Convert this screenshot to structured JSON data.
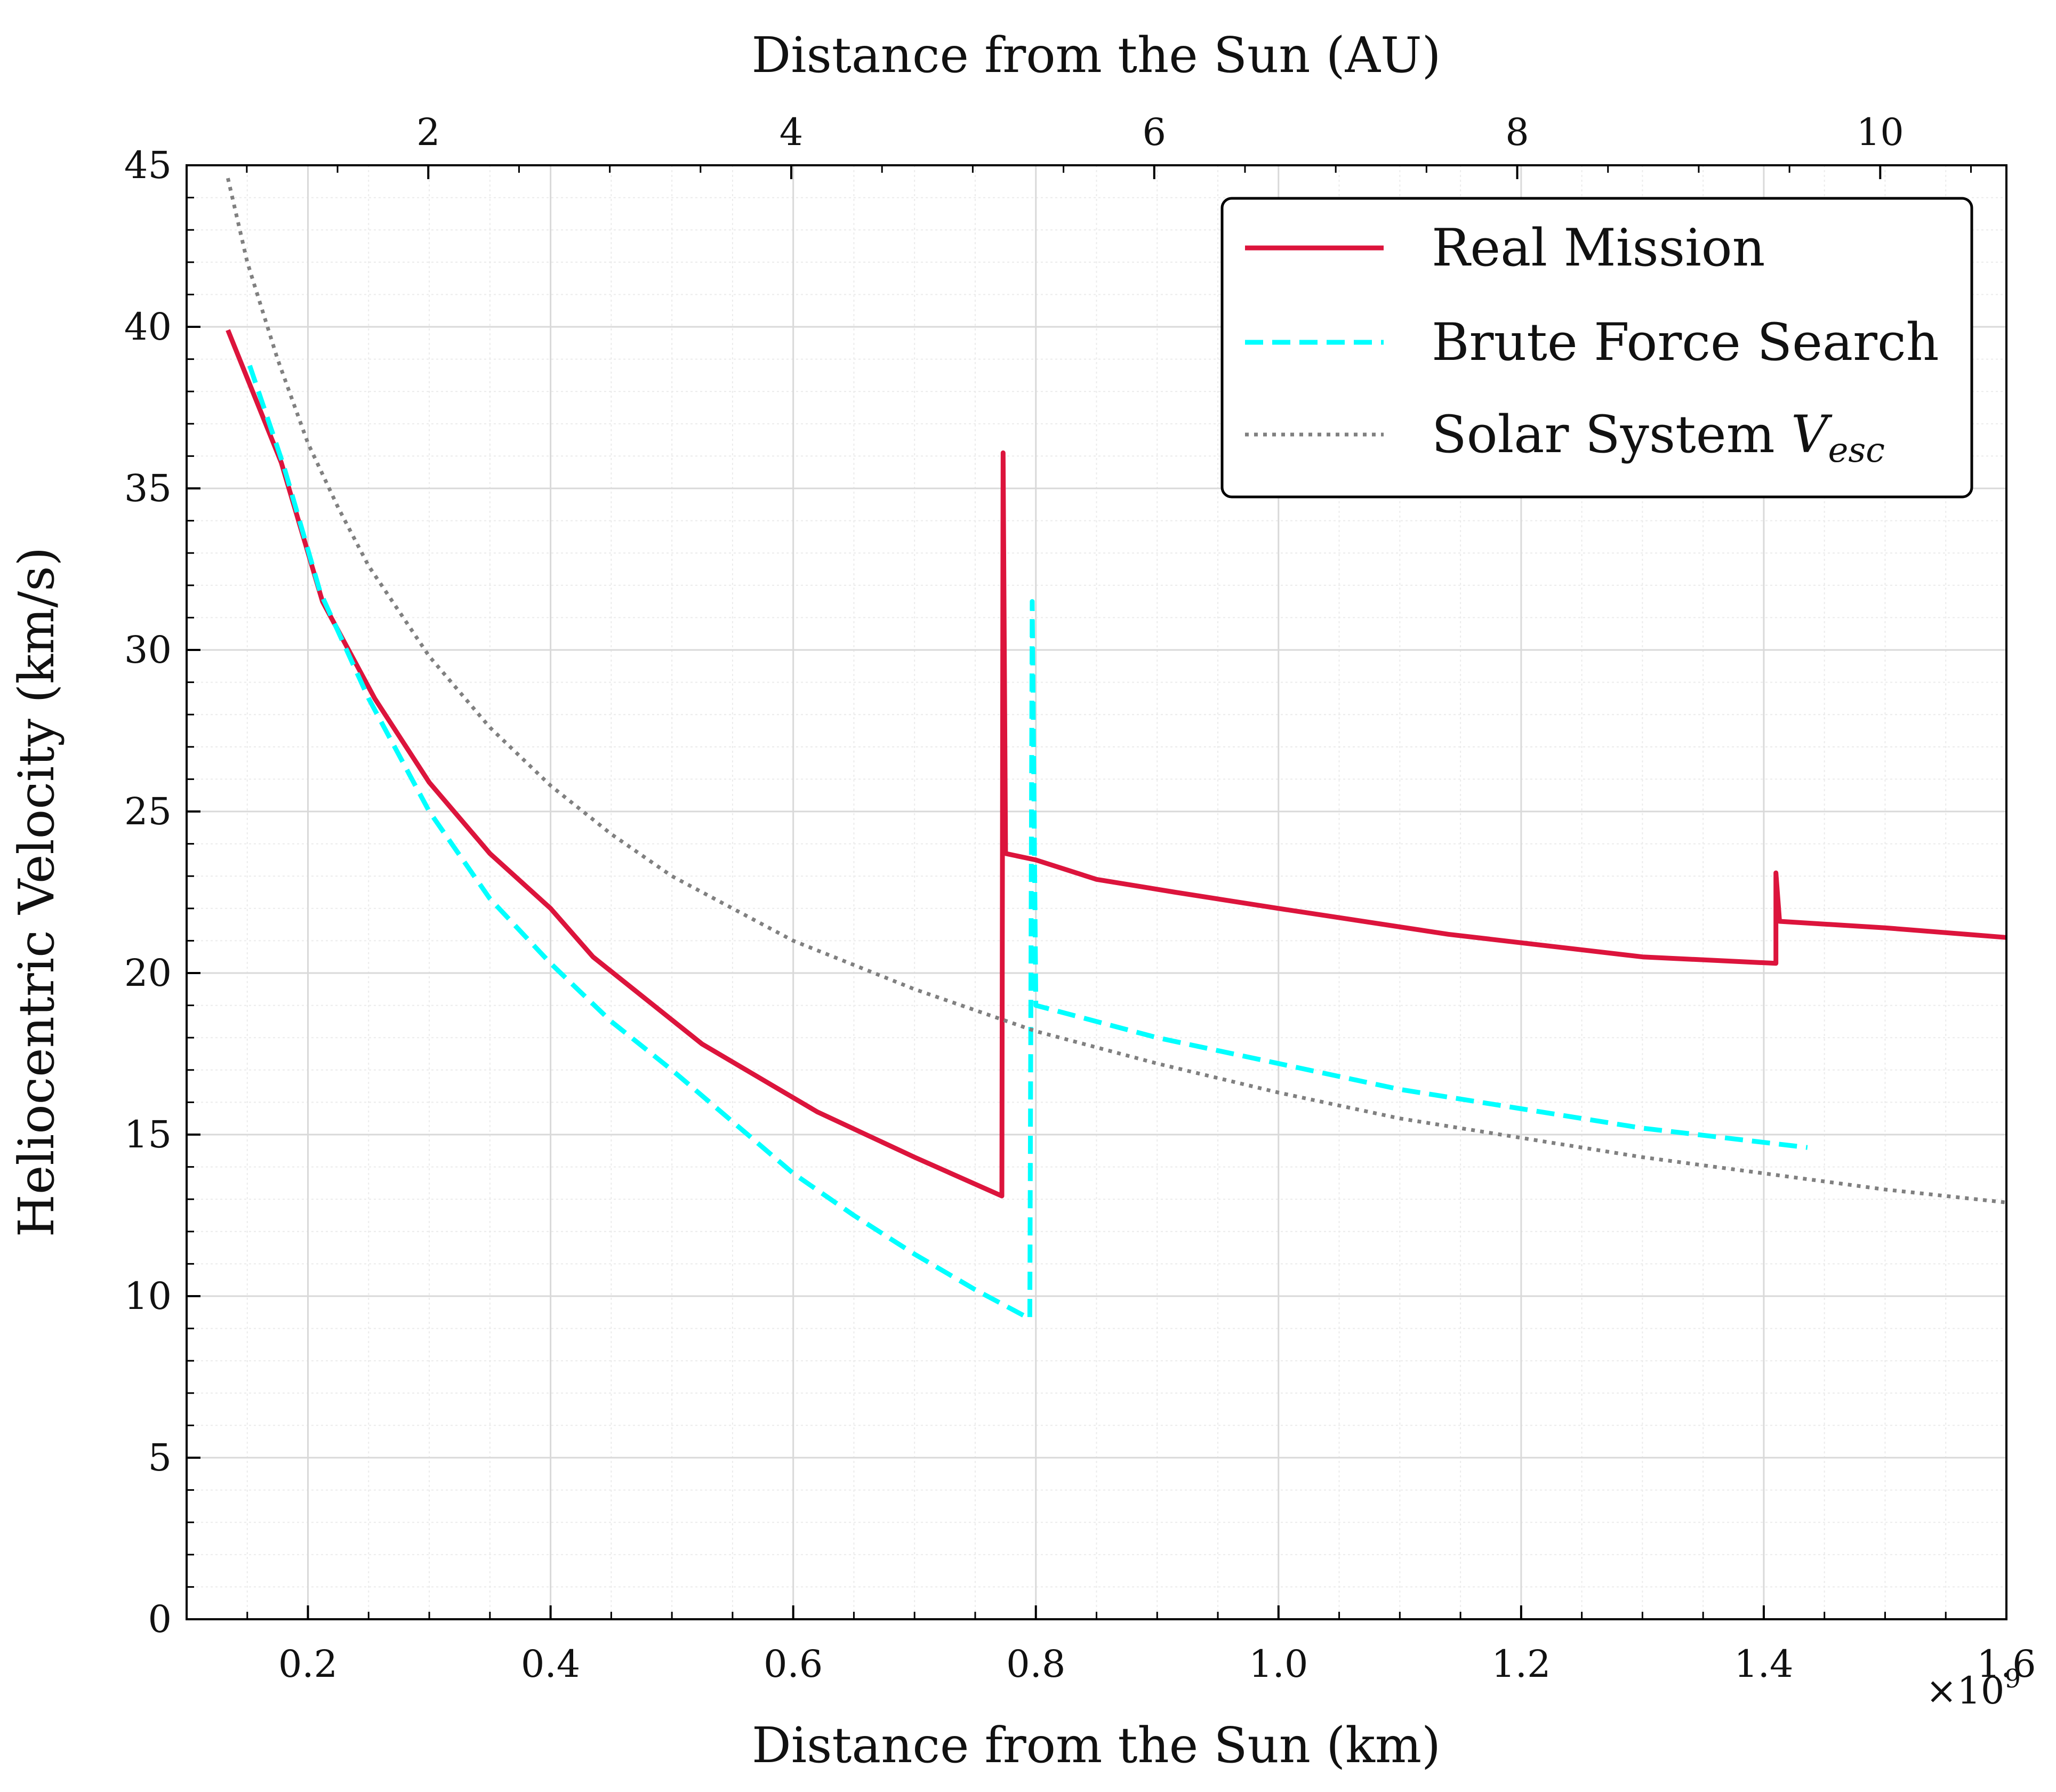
{
  "chart_data": {
    "type": "line",
    "xlabel": "Distance from the Sun (km)",
    "x_multiplier_label": "×10",
    "x_multiplier_exp": "9",
    "x_scale": 1000000000,
    "top_xlabel": "Distance from the Sun (AU)",
    "ylabel": "Heliocentric Velocity (km/s)",
    "xlim": [
      0.1,
      1.6
    ],
    "ylim": [
      0,
      45
    ],
    "x_ticks": [
      0.2,
      0.4,
      0.6,
      0.8,
      1.0,
      1.2,
      1.4,
      1.6
    ],
    "x_tick_labels": [
      "0.2",
      "0.4",
      "0.6",
      "0.8",
      "1.0",
      "1.2",
      "1.4",
      "1.6"
    ],
    "y_ticks": [
      0,
      5,
      10,
      15,
      20,
      25,
      30,
      35,
      40,
      45
    ],
    "y_tick_labels": [
      "0",
      "5",
      "10",
      "15",
      "20",
      "25",
      "30",
      "35",
      "40",
      "45"
    ],
    "top_x_ticks_au": [
      2,
      4,
      6,
      8,
      10
    ],
    "top_x_tick_labels": [
      "2",
      "4",
      "6",
      "8",
      "10"
    ],
    "au_km": 149597870.7,
    "grid": true,
    "legend_position": "top-right",
    "legend": {
      "real": "Real Mission",
      "brute": "Brute Force Search",
      "vesc_prefix": "Solar System ",
      "vesc_symbol": "V",
      "vesc_sub": "esc"
    },
    "series": [
      {
        "name": "Real Mission",
        "style": "solid",
        "color": "#dc143c",
        "points": [
          [
            0.134,
            39.9
          ],
          [
            0.178,
            35.8
          ],
          [
            0.212,
            31.5
          ],
          [
            0.255,
            28.5
          ],
          [
            0.3,
            25.9
          ],
          [
            0.35,
            23.7
          ],
          [
            0.4,
            22.0
          ],
          [
            0.435,
            20.5
          ],
          [
            0.525,
            17.8
          ],
          [
            0.62,
            15.7
          ],
          [
            0.7,
            14.3
          ],
          [
            0.772,
            13.1
          ],
          [
            0.773,
            36.1
          ],
          [
            0.775,
            23.7
          ],
          [
            0.8,
            23.5
          ],
          [
            0.85,
            22.9
          ],
          [
            0.915,
            22.5
          ],
          [
            1.0,
            22.0
          ],
          [
            1.14,
            21.2
          ],
          [
            1.3,
            20.5
          ],
          [
            1.41,
            20.3
          ],
          [
            1.41,
            23.1
          ],
          [
            1.413,
            21.6
          ],
          [
            1.5,
            21.4
          ],
          [
            1.6,
            21.1
          ]
        ]
      },
      {
        "name": "Brute Force Search",
        "style": "dashed",
        "color": "#00ffff",
        "points": [
          [
            0.152,
            38.8
          ],
          [
            0.18,
            35.7
          ],
          [
            0.21,
            31.8
          ],
          [
            0.25,
            28.5
          ],
          [
            0.3,
            25.0
          ],
          [
            0.35,
            22.3
          ],
          [
            0.4,
            20.3
          ],
          [
            0.45,
            18.5
          ],
          [
            0.5,
            17.0
          ],
          [
            0.55,
            15.4
          ],
          [
            0.6,
            13.8
          ],
          [
            0.65,
            12.5
          ],
          [
            0.7,
            11.3
          ],
          [
            0.75,
            10.2
          ],
          [
            0.795,
            9.3
          ],
          [
            0.797,
            31.5
          ],
          [
            0.8,
            19.0
          ],
          [
            0.9,
            18.0
          ],
          [
            1.0,
            17.2
          ],
          [
            1.1,
            16.4
          ],
          [
            1.2,
            15.8
          ],
          [
            1.3,
            15.2
          ],
          [
            1.436,
            14.6
          ]
        ]
      },
      {
        "name": "Solar System V_esc",
        "style": "dotted",
        "color": "#808080",
        "points": [
          [
            0.134,
            44.6
          ],
          [
            0.15,
            42.0
          ],
          [
            0.175,
            39.0
          ],
          [
            0.2,
            36.4
          ],
          [
            0.225,
            34.4
          ],
          [
            0.25,
            32.6
          ],
          [
            0.3,
            29.8
          ],
          [
            0.35,
            27.6
          ],
          [
            0.4,
            25.8
          ],
          [
            0.45,
            24.3
          ],
          [
            0.5,
            23.0
          ],
          [
            0.55,
            22.0
          ],
          [
            0.6,
            21.0
          ],
          [
            0.7,
            19.5
          ],
          [
            0.8,
            18.2
          ],
          [
            0.9,
            17.2
          ],
          [
            1.0,
            16.3
          ],
          [
            1.1,
            15.5
          ],
          [
            1.2,
            14.9
          ],
          [
            1.3,
            14.3
          ],
          [
            1.4,
            13.8
          ],
          [
            1.5,
            13.3
          ],
          [
            1.6,
            12.9
          ]
        ]
      }
    ]
  }
}
